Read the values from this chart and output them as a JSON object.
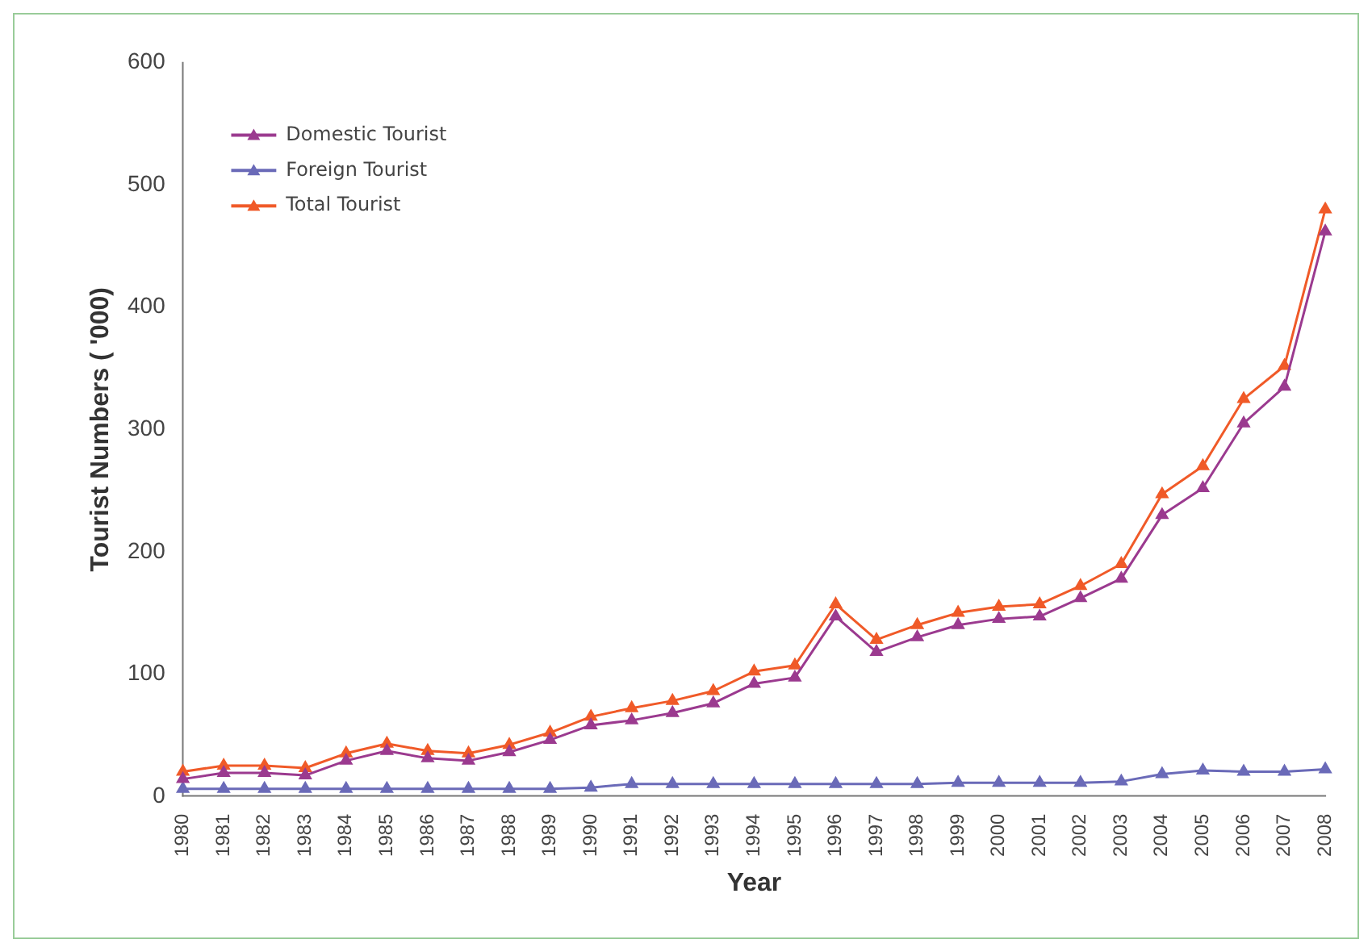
{
  "chart_data": {
    "type": "line",
    "xlabel": "Year",
    "ylabel": "Tourist Numbers ( '000)",
    "categories": [
      "1980",
      "1981",
      "1982",
      "1983",
      "1984",
      "1985",
      "1986",
      "1987",
      "1988",
      "1989",
      "1990",
      "1991",
      "1992",
      "1993",
      "1994",
      "1995",
      "1996",
      "1997",
      "1998",
      "1999",
      "2000",
      "2001",
      "2002",
      "2003",
      "2004",
      "2005",
      "2006",
      "2007",
      "2008"
    ],
    "series": [
      {
        "name": "Domestic Tourist",
        "color": "#9b3a8f",
        "values": [
          14,
          19,
          19,
          17,
          29,
          37,
          31,
          29,
          36,
          46,
          58,
          62,
          68,
          76,
          92,
          97,
          147,
          118,
          130,
          140,
          145,
          147,
          162,
          178,
          230,
          252,
          305,
          335,
          462
        ]
      },
      {
        "name": "Foreign Tourist",
        "color": "#6a6ab8",
        "values": [
          6,
          6,
          6,
          6,
          6,
          6,
          6,
          6,
          6,
          6,
          7,
          10,
          10,
          10,
          10,
          10,
          10,
          10,
          10,
          11,
          11,
          11,
          11,
          12,
          18,
          21,
          20,
          20,
          22
        ]
      },
      {
        "name": "Total Tourist",
        "color": "#f05a28",
        "values": [
          20,
          25,
          25,
          23,
          35,
          43,
          37,
          35,
          42,
          52,
          65,
          72,
          78,
          86,
          102,
          107,
          157,
          128,
          140,
          150,
          155,
          157,
          172,
          190,
          247,
          270,
          325,
          352,
          480
        ]
      }
    ],
    "ylim": [
      0,
      600
    ],
    "yticks": [
      0,
      100,
      200,
      300,
      400,
      500,
      600
    ],
    "grid": false,
    "legend": "top left",
    "marker": "triangle",
    "line_style": "solid"
  }
}
